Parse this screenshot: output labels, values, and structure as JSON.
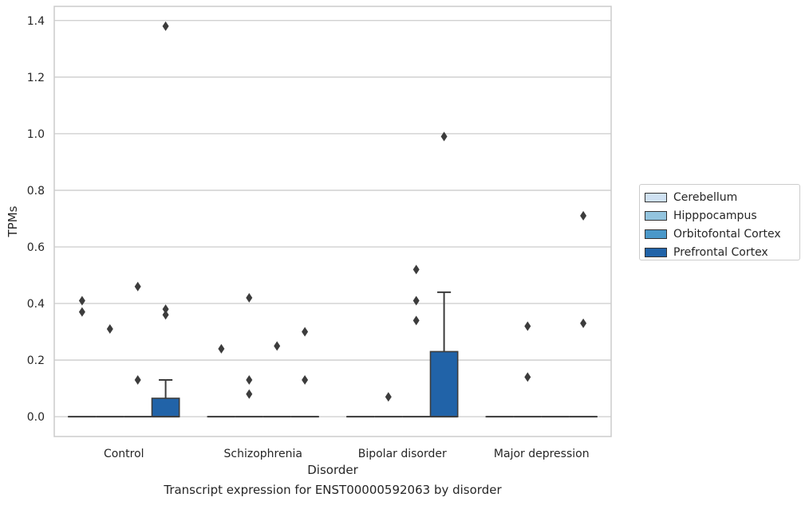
{
  "caption": "Transcript expression for ENST00000592063 by disorder",
  "colors": {
    "Cerebellum": "#cfe1f2",
    "Hipppocampus": "#93c4de",
    "Orbitofontal Cortex": "#4a98c9",
    "Prefrontal Cortex": "#2163a8"
  },
  "chart_data": {
    "type": "box",
    "xlabel": "Disorder",
    "ylabel": "TPMs",
    "categories": [
      "Control",
      "Schizophrenia",
      "Bipolar disorder",
      "Major depression"
    ],
    "ylim": [
      -0.07,
      1.45
    ],
    "yticks": [
      "0.0",
      "0.2",
      "0.4",
      "0.6",
      "0.8",
      "1.0",
      "1.2",
      "1.4"
    ],
    "grid": true,
    "legend_position": "right",
    "series": [
      {
        "name": "Cerebellum",
        "boxes": [
          {
            "q1": 0,
            "median": 0,
            "q3": 0,
            "whisker_low": 0,
            "whisker_high": 0,
            "outliers": [
              0.41,
              0.37
            ]
          },
          {
            "q1": 0,
            "median": 0,
            "q3": 0,
            "whisker_low": 0,
            "whisker_high": 0,
            "outliers": [
              0.24
            ]
          },
          {
            "q1": 0,
            "median": 0,
            "q3": 0,
            "whisker_low": 0,
            "whisker_high": 0,
            "outliers": []
          },
          {
            "q1": 0,
            "median": 0,
            "q3": 0,
            "whisker_low": 0,
            "whisker_high": 0,
            "outliers": []
          }
        ]
      },
      {
        "name": "Hipppocampus",
        "boxes": [
          {
            "q1": 0,
            "median": 0,
            "q3": 0,
            "whisker_low": 0,
            "whisker_high": 0,
            "outliers": [
              0.31
            ]
          },
          {
            "q1": 0,
            "median": 0,
            "q3": 0,
            "whisker_low": 0,
            "whisker_high": 0,
            "outliers": [
              0.13,
              0.08,
              0.42
            ]
          },
          {
            "q1": 0,
            "median": 0,
            "q3": 0,
            "whisker_low": 0,
            "whisker_high": 0,
            "outliers": [
              0.07
            ]
          },
          {
            "q1": 0,
            "median": 0,
            "q3": 0,
            "whisker_low": 0,
            "whisker_high": 0,
            "outliers": [
              0.32,
              0.14
            ]
          }
        ]
      },
      {
        "name": "Orbitofontal Cortex",
        "boxes": [
          {
            "q1": 0,
            "median": 0,
            "q3": 0,
            "whisker_low": 0,
            "whisker_high": 0,
            "outliers": [
              0.46,
              0.13
            ]
          },
          {
            "q1": 0,
            "median": 0,
            "q3": 0,
            "whisker_low": 0,
            "whisker_high": 0,
            "outliers": [
              0.25
            ]
          },
          {
            "q1": 0,
            "median": 0,
            "q3": 0,
            "whisker_low": 0,
            "whisker_high": 0,
            "outliers": [
              0.52,
              0.41,
              0.34
            ]
          },
          {
            "q1": 0,
            "median": 0,
            "q3": 0,
            "whisker_low": 0,
            "whisker_high": 0,
            "outliers": []
          }
        ]
      },
      {
        "name": "Prefrontal Cortex",
        "boxes": [
          {
            "q1": 0,
            "median": 0,
            "q3": 0.065,
            "whisker_low": 0,
            "whisker_high": 0.13,
            "outliers": [
              1.38,
              0.38,
              0.36
            ]
          },
          {
            "q1": 0,
            "median": 0,
            "q3": 0,
            "whisker_low": 0,
            "whisker_high": 0,
            "outliers": [
              0.3,
              0.13
            ]
          },
          {
            "q1": 0,
            "median": 0,
            "q3": 0.23,
            "whisker_low": 0,
            "whisker_high": 0.44,
            "outliers": [
              0.99
            ]
          },
          {
            "q1": 0,
            "median": 0,
            "q3": 0,
            "whisker_low": 0,
            "whisker_high": 0,
            "outliers": [
              0.71,
              0.33
            ]
          }
        ]
      }
    ]
  }
}
